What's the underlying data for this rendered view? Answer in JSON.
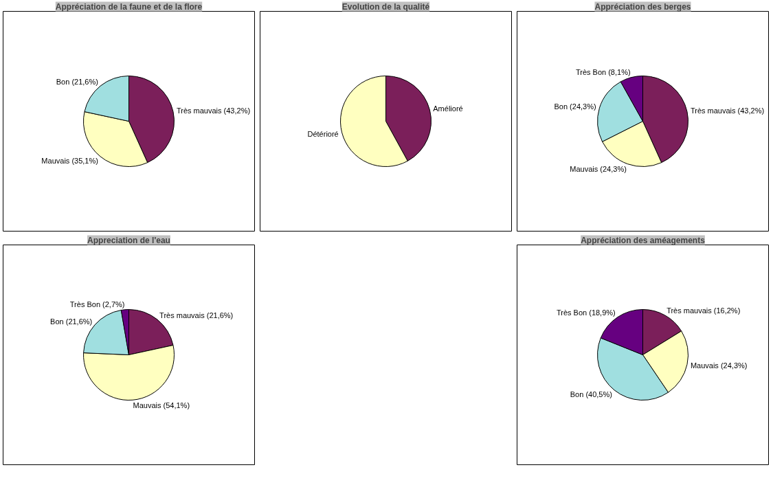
{
  "chart_data": [
    {
      "type": "pie",
      "title": "Appréciation de la faune et de la flore",
      "categories": [
        "Très mauvais (43,2%)",
        "Mauvais (35,1%)",
        "Bon (21,6%)"
      ],
      "values": [
        43.2,
        35.1,
        21.6
      ],
      "colors": [
        "#7b1f5a",
        "#ffffc0",
        "#a0dfe0"
      ]
    },
    {
      "type": "pie",
      "title": "Appréciation des berges",
      "categories": [
        "Très mauvais (43,2%)",
        "Mauvais (24,3%)",
        "Bon (24,3%)",
        "Très Bon (8,1%)"
      ],
      "values": [
        43.2,
        24.3,
        24.3,
        8.1
      ],
      "colors": [
        "#7b1f5a",
        "#ffffc0",
        "#a0dfe0",
        "#660080"
      ]
    },
    {
      "type": "pie",
      "title": "Evolution de la qualité",
      "categories": [
        "Amélioré",
        "Détérioré"
      ],
      "values": [
        42,
        58
      ],
      "colors": [
        "#7b1f5a",
        "#ffffc0"
      ]
    },
    {
      "type": "pie",
      "title": "Appreciation de l'eau",
      "categories": [
        "Très mauvais (21,6%)",
        "Mauvais (54,1%)",
        "Bon (21,6%)",
        "Très Bon (2,7%)"
      ],
      "values": [
        21.6,
        54.1,
        21.6,
        2.7
      ],
      "colors": [
        "#7b1f5a",
        "#ffffc0",
        "#a0dfe0",
        "#660080"
      ]
    },
    {
      "type": "pie",
      "title": "Appréciation des améagements",
      "categories": [
        "Très mauvais (16,2%)",
        "Mauvais (24,3%)",
        "Bon (40,5%)",
        "Très Bon (18,9%)"
      ],
      "values": [
        16.2,
        24.3,
        40.5,
        18.9
      ],
      "colors": [
        "#7b1f5a",
        "#ffffc0",
        "#a0dfe0",
        "#660080"
      ]
    }
  ]
}
